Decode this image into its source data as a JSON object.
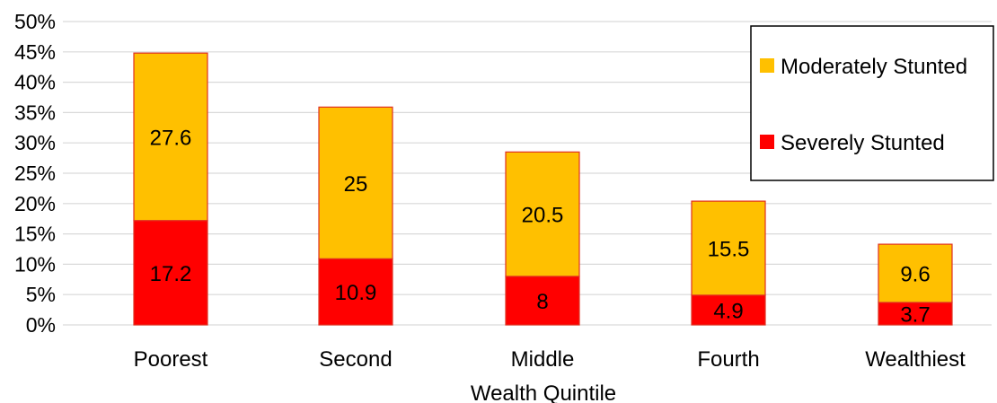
{
  "chart_data": {
    "type": "bar",
    "stacked": true,
    "categories": [
      "Poorest",
      "Second",
      "Middle",
      "Fourth",
      "Wealthiest"
    ],
    "series": [
      {
        "name": "Severely Stunted",
        "values": [
          17.2,
          10.9,
          8,
          4.9,
          3.7
        ],
        "color": "#ff0000"
      },
      {
        "name": "Moderately Stunted",
        "values": [
          27.6,
          25,
          20.5,
          15.5,
          9.6
        ],
        "color": "#ffc000"
      }
    ],
    "xlabel": "Wealth Quintile",
    "ylabel": "",
    "ylim": [
      0,
      50
    ],
    "yticks": [
      0,
      5,
      10,
      15,
      20,
      25,
      30,
      35,
      40,
      45,
      50
    ],
    "ytick_suffix": "%",
    "grid": true,
    "legend_position": "top-right",
    "bar_edge_color": "#e03020"
  }
}
